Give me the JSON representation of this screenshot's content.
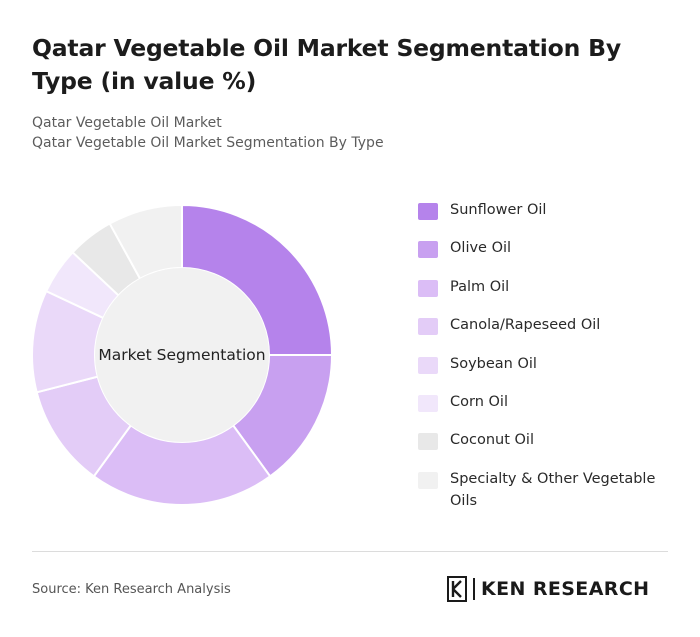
{
  "header": {
    "title": "Qatar Vegetable Oil Market Segmentation By Type (in value %)",
    "subtitle_1": "Qatar Vegetable Oil Market",
    "subtitle_2": "Qatar Vegetable Oil Market Segmentation By Type"
  },
  "chart_data": {
    "type": "pie",
    "center_label": "Market Segmentation",
    "categories": [
      "Sunflower Oil",
      "Olive Oil",
      "Palm Oil",
      "Canola/Rapeseed Oil",
      "Soybean Oil",
      "Corn Oil",
      "Coconut Oil",
      "Specialty & Other Vegetable Oils"
    ],
    "values": [
      25,
      15,
      20,
      11,
      11,
      5,
      5,
      8
    ],
    "colors": [
      "#b583eb",
      "#c8a0f0",
      "#dbbdf6",
      "#e3ccf7",
      "#ead9f9",
      "#f1e7fb",
      "#e8e8e8",
      "#f1f1f1"
    ],
    "legend_position": "right"
  },
  "footer": {
    "source": "Source: Ken Research Analysis",
    "logo_text": "KEN RESEARCH",
    "logo_icon": "ken-research-k-icon"
  }
}
